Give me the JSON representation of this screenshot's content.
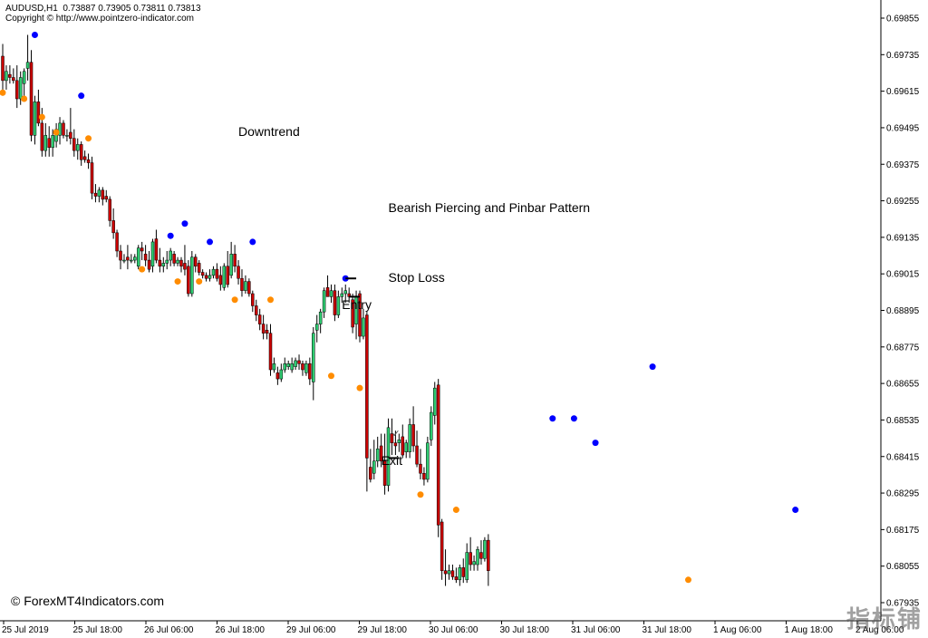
{
  "header": {
    "symbol_line": "AUDUSD,H1  0.73887 0.73905 0.73811 0.73813",
    "copyright": "Copyright © http://www.pointzero-indicator.com"
  },
  "watermark": {
    "bottom_left": "© ForexMT4Indicators.com",
    "bottom_right": "指标铺"
  },
  "chart_data": {
    "type": "candlestick",
    "symbol": "AUDUSD",
    "timeframe": "H1",
    "x_tick_labels": [
      "25 Jul 2019",
      "25 Jul 18:00",
      "26 Jul 06:00",
      "26 Jul 18:00",
      "29 Jul 06:00",
      "29 Jul 18:00",
      "30 Jul 06:00",
      "30 Jul 18:00",
      "31 Jul 06:00",
      "31 Jul 18:00",
      "1 Aug 06:00",
      "1 Aug 18:00",
      "2 Aug 06:00"
    ],
    "y_tick_labels": [
      "0.69855",
      "0.69735",
      "0.69615",
      "0.69495",
      "0.69375",
      "0.69255",
      "0.69135",
      "0.69015",
      "0.68895",
      "0.68775",
      "0.68655",
      "0.68535",
      "0.68415",
      "0.68295",
      "0.68175",
      "0.68055",
      "0.67935"
    ],
    "ylim": [
      0.67935,
      0.69855
    ],
    "colors": {
      "bull": "#2ecc71",
      "bear": "#cc0000",
      "up_dot": "#0000ff",
      "down_dot": "#ff8c00",
      "grid": "#000000"
    },
    "candles": [
      [
        0.6973,
        0.6977,
        0.696,
        0.6965
      ],
      [
        0.6965,
        0.697,
        0.6962,
        0.6968
      ],
      [
        0.6967,
        0.697,
        0.6964,
        0.6966
      ],
      [
        0.6966,
        0.6969,
        0.6964,
        0.6965
      ],
      [
        0.6965,
        0.697,
        0.6956,
        0.6959
      ],
      [
        0.6959,
        0.6968,
        0.6957,
        0.6966
      ],
      [
        0.6964,
        0.6969,
        0.696,
        0.6968
      ],
      [
        0.6969,
        0.698,
        0.6965,
        0.6971
      ],
      [
        0.6971,
        0.6975,
        0.6945,
        0.6947
      ],
      [
        0.6947,
        0.696,
        0.6944,
        0.6958
      ],
      [
        0.6958,
        0.6962,
        0.695,
        0.6951
      ],
      [
        0.6951,
        0.6956,
        0.694,
        0.6942
      ],
      [
        0.6942,
        0.6951,
        0.694,
        0.6947
      ],
      [
        0.6946,
        0.695,
        0.694,
        0.6943
      ],
      [
        0.6943,
        0.6949,
        0.694,
        0.6947
      ],
      [
        0.6945,
        0.6951,
        0.6943,
        0.6949
      ],
      [
        0.6947,
        0.6953,
        0.6944,
        0.6951
      ],
      [
        0.6951,
        0.6952,
        0.6946,
        0.6947
      ],
      [
        0.6947,
        0.6949,
        0.6945,
        0.6947
      ],
      [
        0.6948,
        0.6956,
        0.6944,
        0.6946
      ],
      [
        0.6946,
        0.6949,
        0.694,
        0.6942
      ],
      [
        0.6942,
        0.6946,
        0.6939,
        0.6944
      ],
      [
        0.6944,
        0.6945,
        0.6937,
        0.6939
      ],
      [
        0.694,
        0.6942,
        0.6938,
        0.6939
      ],
      [
        0.6939,
        0.6941,
        0.6936,
        0.6938
      ],
      [
        0.6938,
        0.694,
        0.6926,
        0.6928
      ],
      [
        0.6928,
        0.6931,
        0.6925,
        0.6927
      ],
      [
        0.6927,
        0.693,
        0.6925,
        0.6929
      ],
      [
        0.6929,
        0.693,
        0.6924,
        0.6926
      ],
      [
        0.6927,
        0.6929,
        0.6925,
        0.6926
      ],
      [
        0.6926,
        0.6927,
        0.6917,
        0.6919
      ],
      [
        0.6919,
        0.6923,
        0.6913,
        0.6915
      ],
      [
        0.6915,
        0.6916,
        0.6907,
        0.6909
      ],
      [
        0.6909,
        0.6911,
        0.6903,
        0.6906
      ],
      [
        0.6906,
        0.6908,
        0.6905,
        0.6906
      ],
      [
        0.6907,
        0.6911,
        0.6903,
        0.6906
      ],
      [
        0.6906,
        0.6908,
        0.6905,
        0.6906
      ],
      [
        0.6906,
        0.6908,
        0.6905,
        0.6907
      ],
      [
        0.6904,
        0.6911,
        0.6903,
        0.691
      ],
      [
        0.691,
        0.6912,
        0.6906,
        0.6909
      ],
      [
        0.6908,
        0.6911,
        0.6904,
        0.6906
      ],
      [
        0.6906,
        0.6909,
        0.6902,
        0.6903
      ],
      [
        0.6904,
        0.6913,
        0.6902,
        0.6912
      ],
      [
        0.6913,
        0.6916,
        0.6905,
        0.6906
      ],
      [
        0.6906,
        0.691,
        0.6902,
        0.6904
      ],
      [
        0.6904,
        0.6907,
        0.6902,
        0.6905
      ],
      [
        0.6905,
        0.6909,
        0.6903,
        0.6906
      ],
      [
        0.6906,
        0.691,
        0.6904,
        0.6909
      ],
      [
        0.6908,
        0.6909,
        0.6904,
        0.6905
      ],
      [
        0.6905,
        0.6907,
        0.6904,
        0.6906
      ],
      [
        0.6906,
        0.6907,
        0.6902,
        0.6904
      ],
      [
        0.6905,
        0.6911,
        0.6901,
        0.6903
      ],
      [
        0.6904,
        0.6906,
        0.6894,
        0.6895
      ],
      [
        0.6895,
        0.6909,
        0.6894,
        0.6907
      ],
      [
        0.6907,
        0.6908,
        0.6902,
        0.6904
      ],
      [
        0.6905,
        0.6906,
        0.6901,
        0.6902
      ],
      [
        0.6902,
        0.6903,
        0.69,
        0.6901
      ],
      [
        0.6901,
        0.6902,
        0.6899,
        0.69
      ],
      [
        0.69,
        0.6903,
        0.6899,
        0.6901
      ],
      [
        0.6901,
        0.6904,
        0.69,
        0.6903
      ],
      [
        0.6903,
        0.6905,
        0.6899,
        0.69
      ],
      [
        0.6901,
        0.6904,
        0.6896,
        0.6898
      ],
      [
        0.6897,
        0.6905,
        0.6896,
        0.6904
      ],
      [
        0.6904,
        0.6909,
        0.6897,
        0.6898
      ],
      [
        0.6901,
        0.6912,
        0.69,
        0.6908
      ],
      [
        0.6908,
        0.6911,
        0.6902,
        0.6904
      ],
      [
        0.6904,
        0.6906,
        0.6898,
        0.69
      ],
      [
        0.69,
        0.6903,
        0.6894,
        0.6896
      ],
      [
        0.6896,
        0.6901,
        0.6895,
        0.6899
      ],
      [
        0.6899,
        0.69,
        0.6894,
        0.6895
      ],
      [
        0.6895,
        0.6896,
        0.6889,
        0.6891
      ],
      [
        0.6891,
        0.6893,
        0.6886,
        0.6888
      ],
      [
        0.6888,
        0.689,
        0.6883,
        0.6885
      ],
      [
        0.6885,
        0.6888,
        0.688,
        0.6882
      ],
      [
        0.6883,
        0.6885,
        0.688,
        0.6882
      ],
      [
        0.6882,
        0.6885,
        0.6868,
        0.687
      ],
      [
        0.687,
        0.6874,
        0.6869,
        0.6872
      ],
      [
        0.6869,
        0.6871,
        0.6865,
        0.6867
      ],
      [
        0.6867,
        0.6872,
        0.6866,
        0.687
      ],
      [
        0.687,
        0.6874,
        0.6869,
        0.6872
      ],
      [
        0.6871,
        0.6873,
        0.687,
        0.6872
      ],
      [
        0.687,
        0.6874,
        0.6869,
        0.6872
      ],
      [
        0.6871,
        0.6874,
        0.687,
        0.6873
      ],
      [
        0.6873,
        0.6875,
        0.687,
        0.6872
      ],
      [
        0.6872,
        0.6873,
        0.6868,
        0.687
      ],
      [
        0.6869,
        0.6873,
        0.6868,
        0.6872
      ],
      [
        0.6872,
        0.6874,
        0.6865,
        0.6867
      ],
      [
        0.6866,
        0.6884,
        0.686,
        0.6882
      ],
      [
        0.6883,
        0.6888,
        0.6879,
        0.6885
      ],
      [
        0.6885,
        0.689,
        0.6882,
        0.6889
      ],
      [
        0.6889,
        0.6897,
        0.6887,
        0.6896
      ],
      [
        0.6897,
        0.6901,
        0.6894,
        0.6894
      ],
      [
        0.6894,
        0.6898,
        0.6892,
        0.6896
      ],
      [
        0.6896,
        0.6898,
        0.6886,
        0.6888
      ],
      [
        0.6888,
        0.6896,
        0.6887,
        0.6894
      ],
      [
        0.6894,
        0.6897,
        0.6892,
        0.6895
      ],
      [
        0.6895,
        0.6898,
        0.6892,
        0.6896
      ],
      [
        0.6895,
        0.6897,
        0.6892,
        0.6894
      ],
      [
        0.6893,
        0.6895,
        0.6882,
        0.6884
      ],
      [
        0.6885,
        0.6896,
        0.688,
        0.6894
      ],
      [
        0.6895,
        0.6896,
        0.6879,
        0.6881
      ],
      [
        0.6881,
        0.689,
        0.688,
        0.6887
      ],
      [
        0.6888,
        0.6889,
        0.683,
        0.6841
      ],
      [
        0.6838,
        0.6844,
        0.6833,
        0.6834
      ],
      [
        0.6836,
        0.6847,
        0.6834,
        0.684
      ],
      [
        0.684,
        0.6848,
        0.6838,
        0.6844
      ],
      [
        0.6845,
        0.6849,
        0.6838,
        0.684
      ],
      [
        0.684,
        0.6849,
        0.6829,
        0.6832
      ],
      [
        0.6832,
        0.6854,
        0.683,
        0.6851
      ],
      [
        0.6849,
        0.6854,
        0.6842,
        0.6846
      ],
      [
        0.6846,
        0.685,
        0.6842,
        0.6845
      ],
      [
        0.6846,
        0.6849,
        0.6843,
        0.6847
      ],
      [
        0.6848,
        0.6852,
        0.6841,
        0.6842
      ],
      [
        0.6843,
        0.6847,
        0.6841,
        0.6846
      ],
      [
        0.6843,
        0.6854,
        0.6841,
        0.6852
      ],
      [
        0.6852,
        0.6858,
        0.6843,
        0.6845
      ],
      [
        0.6845,
        0.685,
        0.6838,
        0.6839
      ],
      [
        0.6839,
        0.6844,
        0.6834,
        0.6836
      ],
      [
        0.6836,
        0.6838,
        0.6832,
        0.6834
      ],
      [
        0.6834,
        0.6848,
        0.6833,
        0.6846
      ],
      [
        0.6847,
        0.6858,
        0.6845,
        0.6856
      ],
      [
        0.6855,
        0.6866,
        0.6852,
        0.6864
      ],
      [
        0.6865,
        0.6867,
        0.6815,
        0.6819
      ],
      [
        0.682,
        0.6821,
        0.6801,
        0.6804
      ],
      [
        0.6804,
        0.6811,
        0.6799,
        0.6803
      ],
      [
        0.6803,
        0.6806,
        0.6801,
        0.6804
      ],
      [
        0.6804,
        0.6806,
        0.6801,
        0.6802
      ],
      [
        0.6802,
        0.6805,
        0.68,
        0.6801
      ],
      [
        0.6801,
        0.6806,
        0.6799,
        0.6805
      ],
      [
        0.6805,
        0.6808,
        0.68,
        0.6802
      ],
      [
        0.6801,
        0.6813,
        0.68,
        0.681
      ],
      [
        0.681,
        0.6815,
        0.6804,
        0.6806
      ],
      [
        0.6806,
        0.6809,
        0.6804,
        0.6807
      ],
      [
        0.6806,
        0.6812,
        0.6804,
        0.6811
      ],
      [
        0.681,
        0.6814,
        0.6806,
        0.6808
      ],
      [
        0.6808,
        0.6815,
        0.6807,
        0.6814
      ],
      [
        0.6814,
        0.6816,
        0.6799,
        0.6804
      ]
    ],
    "up_signal_dots": [
      [
        9,
        0.698
      ],
      [
        22,
        0.696
      ],
      [
        47,
        0.6914
      ],
      [
        51,
        0.6918
      ],
      [
        58,
        0.6912
      ],
      [
        70,
        0.6912
      ],
      [
        96,
        0.69
      ],
      [
        154,
        0.6854
      ],
      [
        160,
        0.6854
      ],
      [
        166,
        0.6846
      ],
      [
        182,
        0.6871
      ],
      [
        222,
        0.6824
      ]
    ],
    "down_signal_dots": [
      [
        0,
        0.6961
      ],
      [
        6,
        0.6959
      ],
      [
        11,
        0.6953
      ],
      [
        15,
        0.6948
      ],
      [
        24,
        0.6946
      ],
      [
        39,
        0.6903
      ],
      [
        49,
        0.6899
      ],
      [
        55,
        0.6899
      ],
      [
        65,
        0.6893
      ],
      [
        75,
        0.6893
      ],
      [
        92,
        0.6868
      ],
      [
        100,
        0.6864
      ],
      [
        117,
        0.6829
      ],
      [
        127,
        0.6824
      ],
      [
        192,
        0.6801
      ]
    ],
    "annotations": [
      {
        "text": "Downtrend",
        "x": 66,
        "y": 0.6948
      },
      {
        "text": "Bearish Piercing and Pinbar Pattern",
        "x": 108,
        "y": 0.6923
      },
      {
        "text": "Stop Loss",
        "x": 108,
        "y": 0.69
      },
      {
        "text": "Entry",
        "x": 95,
        "y": 0.6891
      },
      {
        "text": "Exit",
        "x": 106,
        "y": 0.684
      }
    ],
    "levels": [
      {
        "name": "stop-loss-line",
        "y": 0.69,
        "x1": 96,
        "x2": 99
      },
      {
        "name": "entry-line",
        "y": 0.6894,
        "x1": 97,
        "x2": 100
      },
      {
        "name": "exit-line",
        "y": 0.6841,
        "x1": 108,
        "x2": 111
      }
    ],
    "checkmark": {
      "text": "✓",
      "x": 109,
      "y": 0.6848
    }
  }
}
